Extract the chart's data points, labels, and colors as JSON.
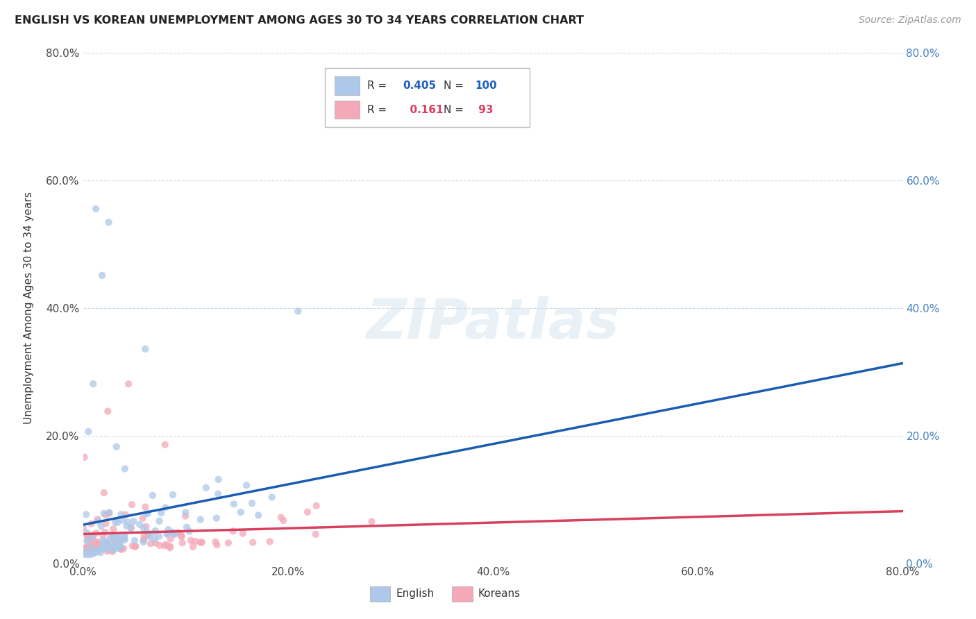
{
  "title": "ENGLISH VS KOREAN UNEMPLOYMENT AMONG AGES 30 TO 34 YEARS CORRELATION CHART",
  "source": "Source: ZipAtlas.com",
  "ylabel": "Unemployment Among Ages 30 to 34 years",
  "watermark": "ZIPatlas",
  "english_R": 0.405,
  "english_N": 100,
  "korean_R": 0.161,
  "korean_N": 93,
  "english_color": "#adc8e8",
  "korean_color": "#f4a8b8",
  "english_line_color": "#1a5db0",
  "korean_line_color": "#d84060",
  "bg_color": "#ffffff",
  "grid_color": "#c8d8e8",
  "xlim": [
    0.0,
    0.8
  ],
  "ylim": [
    0.0,
    0.8
  ],
  "xticks": [
    0.0,
    0.2,
    0.4,
    0.6,
    0.8
  ],
  "yticks": [
    0.0,
    0.2,
    0.4,
    0.6,
    0.8
  ],
  "xtick_labels": [
    "0.0%",
    "20.0%",
    "40.0%",
    "60.0%",
    "80.0%"
  ],
  "ytick_labels": [
    "0.0%",
    "20.0%",
    "40.0%",
    "60.0%",
    "80.0%"
  ],
  "right_ytick_labels": [
    "0.0%",
    "20.0%",
    "40.0%",
    "60.0%",
    "80.0%"
  ],
  "eng_trend_start": 0.01,
  "eng_trend_end": 0.3,
  "kor_trend_start": 0.02,
  "kor_trend_end": 0.13
}
